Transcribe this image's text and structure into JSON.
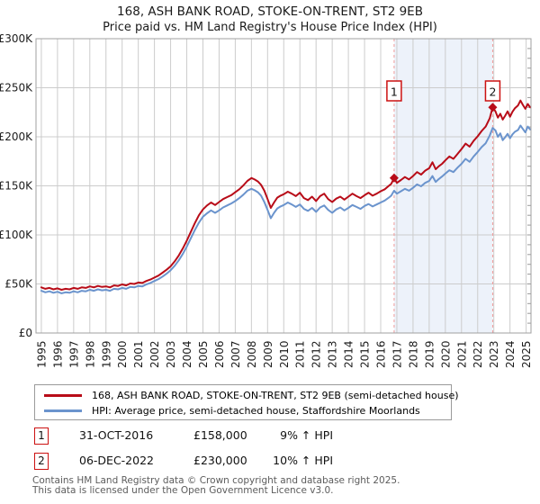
{
  "title": {
    "line1": "168, ASH BANK ROAD, STOKE-ON-TRENT, ST2 9EB",
    "line2": "Price paid vs. HM Land Registry's House Price Index (HPI)"
  },
  "colors": {
    "price_paid": "#b80c18",
    "hpi": "#6b94cd",
    "shaded_region": "#edf2fa",
    "dashed_marker_line": "#f09a9a",
    "grid": "#cccccc",
    "frame": "#a0a0a0",
    "minor_tick": "#999999",
    "marker_box_border": "#cc1111",
    "footer_text": "#5c5c5c"
  },
  "chart_data": {
    "type": "line",
    "title": "168, ASH BANK ROAD, STOKE-ON-TRENT, ST2 9EB",
    "subtitle": "Price paid vs. HM Land Registry's House Price Index (HPI)",
    "unit": "GBP thousands",
    "x_range": [
      1994.67,
      2025.3
    ],
    "y_range": [
      0,
      300
    ],
    "grid": true,
    "y_ticks": [
      {
        "v": 0,
        "label": "£0"
      },
      {
        "v": 50,
        "label": "£50K"
      },
      {
        "v": 100,
        "label": "£100K"
      },
      {
        "v": 150,
        "label": "£150K"
      },
      {
        "v": 200,
        "label": "£200K"
      },
      {
        "v": 250,
        "label": "£250K"
      },
      {
        "v": 300,
        "label": "£300K"
      }
    ],
    "x_ticks": [
      1995,
      1996,
      1997,
      1998,
      1999,
      2000,
      2001,
      2002,
      2003,
      2004,
      2005,
      2006,
      2007,
      2008,
      2009,
      2010,
      2011,
      2012,
      2013,
      2014,
      2015,
      2016,
      2017,
      2018,
      2019,
      2020,
      2021,
      2022,
      2023,
      2024,
      2025
    ],
    "minor_tick_step_right_axis": 10,
    "shaded_region": {
      "x1": 2016.83,
      "x2": 2022.93
    },
    "series": [
      {
        "name": "168, ASH BANK ROAD, STOKE-ON-TRENT, ST2 9EB (semi-detached house)",
        "color": "#b80c18",
        "points": [
          [
            1995.0,
            46.5
          ],
          [
            1995.25,
            45.0
          ],
          [
            1995.5,
            46.0
          ],
          [
            1995.75,
            44.5
          ],
          [
            1996.0,
            45.5
          ],
          [
            1996.25,
            44.0
          ],
          [
            1996.5,
            45.0
          ],
          [
            1996.75,
            44.5
          ],
          [
            1997.0,
            46.0
          ],
          [
            1997.25,
            45.0
          ],
          [
            1997.5,
            46.5
          ],
          [
            1997.75,
            46.0
          ],
          [
            1998.0,
            47.5
          ],
          [
            1998.25,
            46.5
          ],
          [
            1998.5,
            48.0
          ],
          [
            1998.75,
            47.0
          ],
          [
            1999.0,
            47.5
          ],
          [
            1999.25,
            46.5
          ],
          [
            1999.5,
            48.5
          ],
          [
            1999.75,
            48.0
          ],
          [
            2000.0,
            49.5
          ],
          [
            2000.25,
            48.5
          ],
          [
            2000.5,
            50.5
          ],
          [
            2000.75,
            50.0
          ],
          [
            2001.0,
            51.5
          ],
          [
            2001.25,
            51.0
          ],
          [
            2001.5,
            53.0
          ],
          [
            2001.75,
            54.5
          ],
          [
            2002.0,
            56.5
          ],
          [
            2002.25,
            58.5
          ],
          [
            2002.5,
            61.5
          ],
          [
            2002.75,
            64.5
          ],
          [
            2003.0,
            68.0
          ],
          [
            2003.25,
            73.0
          ],
          [
            2003.5,
            79.0
          ],
          [
            2003.75,
            86.0
          ],
          [
            2004.0,
            94.0
          ],
          [
            2004.25,
            103.0
          ],
          [
            2004.5,
            112.0
          ],
          [
            2004.75,
            120.0
          ],
          [
            2005.0,
            126.0
          ],
          [
            2005.25,
            130.0
          ],
          [
            2005.5,
            133.0
          ],
          [
            2005.75,
            130.5
          ],
          [
            2006.0,
            133.5
          ],
          [
            2006.25,
            136.5
          ],
          [
            2006.5,
            138.5
          ],
          [
            2006.75,
            140.5
          ],
          [
            2007.0,
            143.5
          ],
          [
            2007.25,
            146.5
          ],
          [
            2007.5,
            150.5
          ],
          [
            2007.75,
            155.0
          ],
          [
            2008.0,
            158.0
          ],
          [
            2008.2,
            156.5
          ],
          [
            2008.4,
            154.5
          ],
          [
            2008.6,
            151.0
          ],
          [
            2008.8,
            145.0
          ],
          [
            2009.0,
            136.5
          ],
          [
            2009.2,
            127.5
          ],
          [
            2009.4,
            133.0
          ],
          [
            2009.6,
            138.0
          ],
          [
            2009.8,
            140.0
          ],
          [
            2010.0,
            141.5
          ],
          [
            2010.25,
            144.0
          ],
          [
            2010.5,
            142.0
          ],
          [
            2010.75,
            139.5
          ],
          [
            2011.0,
            143.0
          ],
          [
            2011.25,
            137.5
          ],
          [
            2011.5,
            135.5
          ],
          [
            2011.75,
            139.0
          ],
          [
            2012.0,
            134.5
          ],
          [
            2012.25,
            139.5
          ],
          [
            2012.5,
            142.0
          ],
          [
            2012.75,
            136.5
          ],
          [
            2013.0,
            133.5
          ],
          [
            2013.25,
            137.0
          ],
          [
            2013.5,
            139.0
          ],
          [
            2013.75,
            136.0
          ],
          [
            2014.0,
            139.0
          ],
          [
            2014.25,
            142.0
          ],
          [
            2014.5,
            139.5
          ],
          [
            2014.75,
            137.5
          ],
          [
            2015.0,
            140.5
          ],
          [
            2015.25,
            143.0
          ],
          [
            2015.5,
            140.0
          ],
          [
            2015.75,
            142.0
          ],
          [
            2016.0,
            144.5
          ],
          [
            2016.25,
            146.5
          ],
          [
            2016.5,
            150.0
          ],
          [
            2016.65,
            152.0
          ],
          [
            2016.83,
            158.0
          ],
          [
            2017.0,
            153.0
          ],
          [
            2017.25,
            156.0
          ],
          [
            2017.5,
            159.0
          ],
          [
            2017.75,
            156.5
          ],
          [
            2018.0,
            160.0
          ],
          [
            2018.25,
            164.0
          ],
          [
            2018.5,
            161.5
          ],
          [
            2018.75,
            165.5
          ],
          [
            2019.0,
            168.0
          ],
          [
            2019.2,
            174.0
          ],
          [
            2019.4,
            167.0
          ],
          [
            2019.6,
            170.0
          ],
          [
            2019.8,
            172.5
          ],
          [
            2020.0,
            176.0
          ],
          [
            2020.25,
            180.0
          ],
          [
            2020.5,
            177.5
          ],
          [
            2020.75,
            182.5
          ],
          [
            2021.0,
            187.5
          ],
          [
            2021.25,
            193.0
          ],
          [
            2021.5,
            190.0
          ],
          [
            2021.75,
            196.0
          ],
          [
            2022.0,
            200.5
          ],
          [
            2022.25,
            206.0
          ],
          [
            2022.5,
            210.5
          ],
          [
            2022.75,
            219.0
          ],
          [
            2022.93,
            230.0
          ],
          [
            2023.1,
            226.0
          ],
          [
            2023.25,
            219.5
          ],
          [
            2023.4,
            223.5
          ],
          [
            2023.55,
            217.5
          ],
          [
            2023.7,
            221.5
          ],
          [
            2023.85,
            226.0
          ],
          [
            2024.0,
            220.5
          ],
          [
            2024.15,
            225.5
          ],
          [
            2024.3,
            229.0
          ],
          [
            2024.5,
            232.0
          ],
          [
            2024.65,
            237.0
          ],
          [
            2024.8,
            232.5
          ],
          [
            2024.95,
            228.5
          ],
          [
            2025.1,
            233.5
          ],
          [
            2025.25,
            230.0
          ]
        ]
      },
      {
        "name": "HPI: Average price, semi-detached house, Staffordshire Moorlands",
        "color": "#6b94cd",
        "points": [
          [
            1995.0,
            43.0
          ],
          [
            1995.25,
            41.5
          ],
          [
            1995.5,
            42.5
          ],
          [
            1995.75,
            41.0
          ],
          [
            1996.0,
            42.0
          ],
          [
            1996.25,
            40.5
          ],
          [
            1996.5,
            41.5
          ],
          [
            1996.75,
            41.0
          ],
          [
            1997.0,
            42.5
          ],
          [
            1997.25,
            41.5
          ],
          [
            1997.5,
            43.0
          ],
          [
            1997.75,
            42.5
          ],
          [
            1998.0,
            44.0
          ],
          [
            1998.25,
            43.0
          ],
          [
            1998.5,
            44.5
          ],
          [
            1998.75,
            43.5
          ],
          [
            1999.0,
            44.0
          ],
          [
            1999.25,
            43.0
          ],
          [
            1999.5,
            45.0
          ],
          [
            1999.75,
            44.5
          ],
          [
            2000.0,
            46.0
          ],
          [
            2000.25,
            45.0
          ],
          [
            2000.5,
            47.0
          ],
          [
            2000.75,
            46.5
          ],
          [
            2001.0,
            48.0
          ],
          [
            2001.25,
            47.5
          ],
          [
            2001.5,
            49.5
          ],
          [
            2001.75,
            51.0
          ],
          [
            2002.0,
            53.0
          ],
          [
            2002.25,
            55.0
          ],
          [
            2002.5,
            57.5
          ],
          [
            2002.75,
            60.5
          ],
          [
            2003.0,
            64.0
          ],
          [
            2003.25,
            68.5
          ],
          [
            2003.5,
            74.0
          ],
          [
            2003.75,
            80.5
          ],
          [
            2004.0,
            88.0
          ],
          [
            2004.25,
            96.5
          ],
          [
            2004.5,
            105.0
          ],
          [
            2004.75,
            112.5
          ],
          [
            2005.0,
            118.5
          ],
          [
            2005.25,
            122.0
          ],
          [
            2005.5,
            125.0
          ],
          [
            2005.75,
            122.5
          ],
          [
            2006.0,
            125.0
          ],
          [
            2006.25,
            128.0
          ],
          [
            2006.5,
            130.0
          ],
          [
            2006.75,
            132.0
          ],
          [
            2007.0,
            134.5
          ],
          [
            2007.25,
            137.5
          ],
          [
            2007.5,
            141.0
          ],
          [
            2007.75,
            145.0
          ],
          [
            2008.0,
            147.0
          ],
          [
            2008.2,
            145.5
          ],
          [
            2008.4,
            143.5
          ],
          [
            2008.6,
            140.0
          ],
          [
            2008.8,
            133.5
          ],
          [
            2009.0,
            125.5
          ],
          [
            2009.2,
            117.0
          ],
          [
            2009.4,
            122.5
          ],
          [
            2009.6,
            127.0
          ],
          [
            2009.8,
            129.0
          ],
          [
            2010.0,
            130.5
          ],
          [
            2010.25,
            133.0
          ],
          [
            2010.5,
            131.0
          ],
          [
            2010.75,
            128.5
          ],
          [
            2011.0,
            131.0
          ],
          [
            2011.25,
            126.5
          ],
          [
            2011.5,
            124.5
          ],
          [
            2011.75,
            127.5
          ],
          [
            2012.0,
            123.5
          ],
          [
            2012.25,
            128.0
          ],
          [
            2012.5,
            130.0
          ],
          [
            2012.75,
            125.5
          ],
          [
            2013.0,
            122.5
          ],
          [
            2013.25,
            126.0
          ],
          [
            2013.5,
            128.0
          ],
          [
            2013.75,
            125.0
          ],
          [
            2014.0,
            127.5
          ],
          [
            2014.25,
            130.5
          ],
          [
            2014.5,
            128.5
          ],
          [
            2014.75,
            126.5
          ],
          [
            2015.0,
            129.5
          ],
          [
            2015.25,
            131.5
          ],
          [
            2015.5,
            129.0
          ],
          [
            2015.75,
            131.0
          ],
          [
            2016.0,
            133.0
          ],
          [
            2016.25,
            135.0
          ],
          [
            2016.5,
            138.0
          ],
          [
            2016.65,
            140.0
          ],
          [
            2016.83,
            145.0
          ],
          [
            2017.0,
            142.0
          ],
          [
            2017.25,
            144.5
          ],
          [
            2017.5,
            147.0
          ],
          [
            2017.75,
            145.0
          ],
          [
            2018.0,
            148.0
          ],
          [
            2018.25,
            151.5
          ],
          [
            2018.5,
            149.5
          ],
          [
            2018.75,
            153.0
          ],
          [
            2019.0,
            155.0
          ],
          [
            2019.2,
            160.0
          ],
          [
            2019.4,
            154.0
          ],
          [
            2019.6,
            157.0
          ],
          [
            2019.8,
            159.5
          ],
          [
            2020.0,
            162.5
          ],
          [
            2020.25,
            166.0
          ],
          [
            2020.5,
            164.0
          ],
          [
            2020.75,
            168.5
          ],
          [
            2021.0,
            172.5
          ],
          [
            2021.25,
            177.5
          ],
          [
            2021.5,
            174.5
          ],
          [
            2021.75,
            180.0
          ],
          [
            2022.0,
            184.5
          ],
          [
            2022.25,
            189.5
          ],
          [
            2022.5,
            193.5
          ],
          [
            2022.75,
            201.5
          ],
          [
            2022.93,
            209.0
          ],
          [
            2023.1,
            206.5
          ],
          [
            2023.25,
            200.0
          ],
          [
            2023.4,
            203.5
          ],
          [
            2023.55,
            196.5
          ],
          [
            2023.7,
            199.5
          ],
          [
            2023.85,
            203.0
          ],
          [
            2024.0,
            198.5
          ],
          [
            2024.15,
            202.5
          ],
          [
            2024.3,
            205.0
          ],
          [
            2024.5,
            207.0
          ],
          [
            2024.65,
            211.5
          ],
          [
            2024.8,
            208.0
          ],
          [
            2024.95,
            204.5
          ],
          [
            2025.1,
            210.5
          ],
          [
            2025.25,
            207.5
          ]
        ]
      }
    ],
    "sales": [
      {
        "num": "1",
        "date": "31-OCT-2016",
        "price": "£158,000",
        "vs_hpi": "9% ↑ HPI",
        "x": 2016.83,
        "y": 158
      },
      {
        "num": "2",
        "date": "06-DEC-2022",
        "price": "£230,000",
        "vs_hpi": "10% ↑ HPI",
        "x": 2022.93,
        "y": 230
      }
    ],
    "legend_position": "bottom"
  },
  "footer": {
    "line1": "Contains HM Land Registry data © Crown copyright and database right 2025.",
    "line2": "This data is licensed under the Open Government Licence v3.0."
  }
}
